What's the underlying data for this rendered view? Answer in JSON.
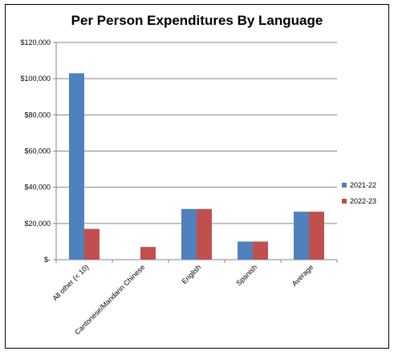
{
  "chart_data": {
    "type": "bar",
    "title": "Per Person Expenditures By Language",
    "categories": [
      "All other (< 10)",
      "Cantonese/Mandarin Chinese",
      "English",
      "Spanish",
      "Average"
    ],
    "series": [
      {
        "name": "2021-22",
        "color": "#4F81BD",
        "values": [
          103000,
          0,
          28000,
          10000,
          26500
        ]
      },
      {
        "name": "2022-23",
        "color": "#C0504D",
        "values": [
          17000,
          7000,
          28000,
          10000,
          26500
        ]
      }
    ],
    "ylim": [
      0,
      120000
    ],
    "yticks": [
      0,
      20000,
      40000,
      60000,
      80000,
      100000,
      120000
    ],
    "ytick_labels": [
      "$-",
      "$20,000",
      "$40,000",
      "$60,000",
      "$80,000",
      "$100,000",
      "$120,000"
    ],
    "xlabel": "",
    "ylabel": "",
    "grid": true,
    "legend_position": "right"
  }
}
